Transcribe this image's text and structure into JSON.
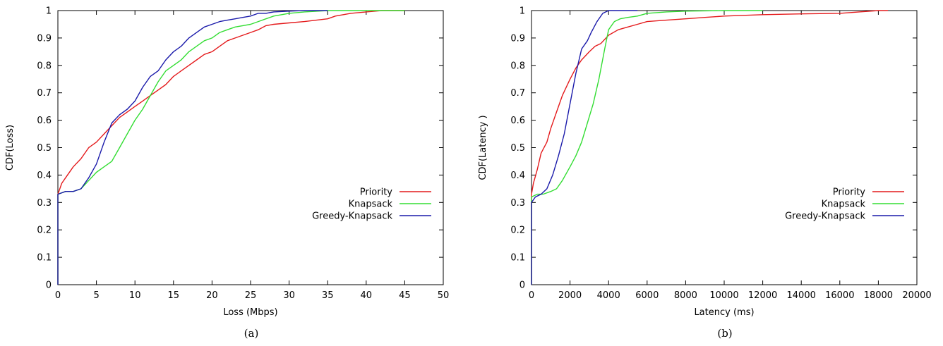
{
  "chart_data": [
    {
      "type": "line",
      "caption": "(a)",
      "xlabel": "Loss (Mbps)",
      "ylabel": "CDF(Loss)",
      "xlim": [
        0,
        50
      ],
      "ylim": [
        0,
        1
      ],
      "xticks": [
        0,
        5,
        10,
        15,
        20,
        25,
        30,
        35,
        40,
        45,
        50
      ],
      "yticks": [
        0,
        0.1,
        0.2,
        0.3,
        0.4,
        0.5,
        0.6,
        0.7,
        0.8,
        0.9,
        1
      ],
      "xtick_labels": [
        "0",
        "5",
        "10",
        "15",
        "20",
        "25",
        "30",
        "35",
        "40",
        "45",
        "50"
      ],
      "ytick_labels": [
        "0",
        "0.1",
        "0.2",
        "0.3",
        "0.4",
        "0.5",
        "0.6",
        "0.7",
        "0.8",
        "0.9",
        "1"
      ],
      "legend_position": "right-middle",
      "series": [
        {
          "name": "Priority",
          "color": "#e41a1c",
          "x": [
            0,
            0,
            0.5,
            1,
            2,
            3,
            4,
            5,
            6,
            7,
            8,
            9,
            10,
            11,
            12,
            13,
            14,
            15,
            16,
            17,
            18,
            19,
            20,
            21,
            22,
            23,
            24,
            25,
            26,
            27,
            28,
            30,
            32,
            35,
            36,
            38,
            40,
            42,
            45
          ],
          "y": [
            0,
            0.33,
            0.37,
            0.39,
            0.43,
            0.46,
            0.5,
            0.52,
            0.55,
            0.58,
            0.61,
            0.63,
            0.65,
            0.67,
            0.69,
            0.71,
            0.73,
            0.76,
            0.78,
            0.8,
            0.82,
            0.84,
            0.85,
            0.87,
            0.89,
            0.9,
            0.91,
            0.92,
            0.93,
            0.945,
            0.95,
            0.955,
            0.96,
            0.97,
            0.98,
            0.99,
            0.995,
            1.0,
            1.0
          ]
        },
        {
          "name": "Knapsack",
          "color": "#33dd33",
          "x": [
            0,
            0,
            1,
            2,
            3,
            4,
            5,
            6,
            7,
            8,
            9,
            10,
            11,
            12,
            13,
            14,
            15,
            16,
            17,
            18,
            19,
            20,
            21,
            22,
            23,
            24,
            25,
            26,
            27,
            28,
            30,
            32,
            35,
            40,
            45
          ],
          "y": [
            0,
            0.33,
            0.34,
            0.34,
            0.35,
            0.38,
            0.41,
            0.43,
            0.45,
            0.5,
            0.55,
            0.6,
            0.64,
            0.69,
            0.74,
            0.78,
            0.8,
            0.82,
            0.85,
            0.87,
            0.89,
            0.9,
            0.92,
            0.93,
            0.94,
            0.945,
            0.95,
            0.96,
            0.97,
            0.98,
            0.99,
            0.995,
            1.0,
            1.0,
            1.0
          ]
        },
        {
          "name": "Greedy-Knapsack",
          "color": "#1a1aaa",
          "x": [
            0,
            0,
            1,
            2,
            3,
            4,
            5,
            6,
            7,
            8,
            9,
            10,
            11,
            12,
            13,
            14,
            15,
            16,
            17,
            18,
            19,
            20,
            21,
            22,
            23,
            24,
            25,
            26,
            27,
            28,
            30,
            32,
            35
          ],
          "y": [
            0,
            0.33,
            0.34,
            0.34,
            0.35,
            0.39,
            0.44,
            0.52,
            0.59,
            0.62,
            0.64,
            0.67,
            0.72,
            0.76,
            0.78,
            0.82,
            0.85,
            0.87,
            0.9,
            0.92,
            0.94,
            0.95,
            0.96,
            0.965,
            0.97,
            0.975,
            0.98,
            0.99,
            0.99,
            0.995,
            0.998,
            1.0,
            1.0
          ]
        }
      ]
    },
    {
      "type": "line",
      "caption": "(b)",
      "xlabel": "Latency (ms)",
      "ylabel": "CDF(Latency )",
      "xlim": [
        0,
        20000
      ],
      "ylim": [
        0,
        1
      ],
      "xticks": [
        0,
        2000,
        4000,
        6000,
        8000,
        10000,
        12000,
        14000,
        16000,
        18000,
        20000
      ],
      "yticks": [
        0,
        0.1,
        0.2,
        0.3,
        0.4,
        0.5,
        0.6,
        0.7,
        0.8,
        0.9,
        1
      ],
      "xtick_labels": [
        "0",
        "2000",
        "4000",
        "6000",
        "8000",
        "10000",
        "12000",
        "14000",
        "16000",
        "18000",
        "20000"
      ],
      "ytick_labels": [
        "0",
        "0.1",
        "0.2",
        "0.3",
        "0.4",
        "0.5",
        "0.6",
        "0.7",
        "0.8",
        "0.9",
        "1"
      ],
      "legend_position": "right-middle",
      "series": [
        {
          "name": "Priority",
          "color": "#e41a1c",
          "x": [
            0,
            0,
            100,
            300,
            500,
            800,
            1000,
            1300,
            1600,
            2000,
            2300,
            2600,
            3000,
            3300,
            3600,
            4000,
            4500,
            5000,
            5500,
            6000,
            7000,
            8000,
            9000,
            10000,
            12000,
            14000,
            16000,
            17000,
            18000,
            18500
          ],
          "y": [
            0,
            0.33,
            0.37,
            0.42,
            0.48,
            0.52,
            0.57,
            0.63,
            0.69,
            0.75,
            0.79,
            0.82,
            0.85,
            0.87,
            0.88,
            0.91,
            0.93,
            0.94,
            0.95,
            0.96,
            0.965,
            0.97,
            0.975,
            0.98,
            0.985,
            0.988,
            0.99,
            0.995,
            1.0,
            1.0
          ]
        },
        {
          "name": "Knapsack",
          "color": "#33dd33",
          "x": [
            0,
            0,
            300,
            600,
            1000,
            1300,
            1600,
            2000,
            2300,
            2600,
            2900,
            3200,
            3500,
            3800,
            4000,
            4300,
            4600,
            5000,
            5500,
            6000,
            7000,
            8000,
            10000,
            12000
          ],
          "y": [
            0,
            0.32,
            0.33,
            0.33,
            0.34,
            0.35,
            0.38,
            0.43,
            0.47,
            0.52,
            0.59,
            0.66,
            0.75,
            0.86,
            0.93,
            0.96,
            0.97,
            0.975,
            0.98,
            0.99,
            0.995,
            0.998,
            1.0,
            1.0
          ]
        },
        {
          "name": "Greedy-Knapsack",
          "color": "#1a1aaa",
          "x": [
            0,
            0,
            200,
            500,
            800,
            1100,
            1400,
            1700,
            2000,
            2300,
            2600,
            2900,
            3100,
            3400,
            3700,
            4000,
            4500,
            5000,
            5500
          ],
          "y": [
            0,
            0.3,
            0.32,
            0.33,
            0.35,
            0.4,
            0.47,
            0.55,
            0.66,
            0.77,
            0.86,
            0.89,
            0.92,
            0.96,
            0.99,
            1.0,
            1.0,
            1.0,
            1.0
          ]
        }
      ]
    }
  ]
}
